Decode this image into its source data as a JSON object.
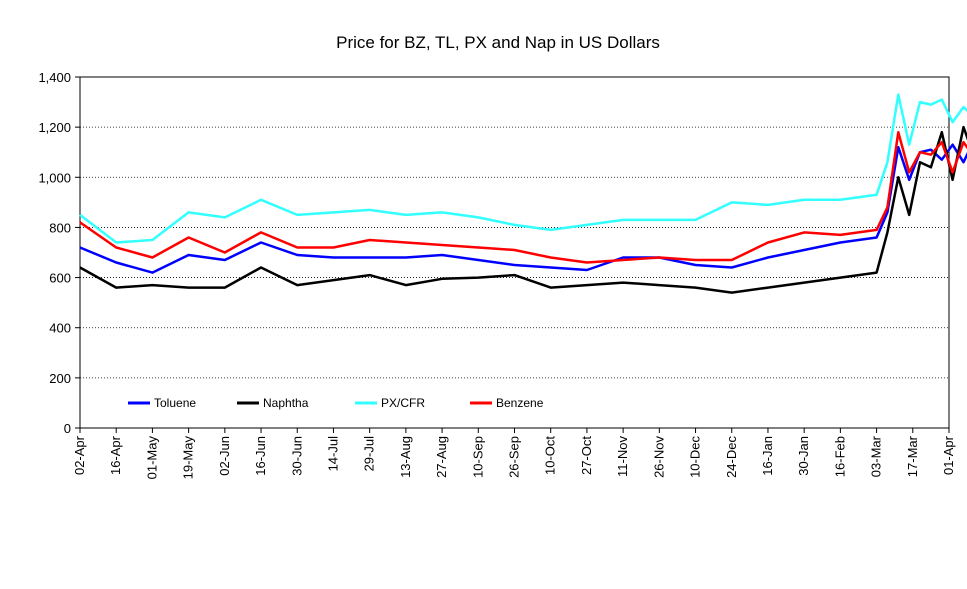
{
  "chart_data": {
    "type": "line",
    "title": "Price for BZ, TL, PX and Nap in US Dollars",
    "xlabel": "",
    "ylabel": "",
    "ylim": [
      0,
      1400
    ],
    "yticks": [
      0,
      200,
      400,
      600,
      800,
      1000,
      1200,
      1400
    ],
    "ytick_labels": [
      "0",
      "200",
      "400",
      "600",
      "800",
      "1,000",
      "1,200",
      "1,400"
    ],
    "grid": "horizontal dotted",
    "legend_position": "lower-left inside plot",
    "x_tick_labels": [
      "02-Apr",
      "16-Apr",
      "01-May",
      "19-May",
      "02-Jun",
      "16-Jun",
      "30-Jun",
      "14-Jul",
      "29-Jul",
      "13-Aug",
      "27-Aug",
      "10-Sep",
      "26-Sep",
      "10-Oct",
      "27-Oct",
      "11-Nov",
      "26-Nov",
      "10-Dec",
      "24-Dec",
      "16-Jan",
      "30-Jan",
      "16-Feb",
      "03-Mar",
      "17-Mar",
      "01-Apr"
    ],
    "x": [
      0,
      1,
      2,
      3,
      4,
      5,
      6,
      7,
      8,
      9,
      10,
      11,
      12,
      13,
      14,
      15,
      16,
      17,
      18,
      19,
      20,
      21,
      22,
      22.3,
      22.6,
      22.9,
      23.2,
      23.5,
      23.8,
      24.1,
      24.4,
      24.7,
      25.0
    ],
    "series": [
      {
        "name": "Toluene",
        "color": "#0000FF",
        "values": [
          720,
          660,
          620,
          690,
          670,
          740,
          690,
          680,
          680,
          680,
          690,
          670,
          650,
          640,
          630,
          680,
          680,
          650,
          640,
          680,
          710,
          740,
          760,
          860,
          1120,
          990,
          1100,
          1110,
          1070,
          1130,
          1060,
          1150,
          1120
        ]
      },
      {
        "name": "Naphtha",
        "color": "#000000",
        "values": [
          640,
          560,
          570,
          560,
          560,
          640,
          570,
          590,
          610,
          570,
          595,
          600,
          610,
          560,
          570,
          580,
          570,
          560,
          540,
          560,
          580,
          600,
          620,
          780,
          1000,
          850,
          1060,
          1040,
          1180,
          990,
          1200,
          1080,
          1150
        ]
      },
      {
        "name": "PX/CFR",
        "color": "#33FFFF",
        "values": [
          850,
          740,
          750,
          860,
          840,
          910,
          850,
          860,
          870,
          850,
          860,
          840,
          810,
          790,
          810,
          830,
          830,
          830,
          900,
          890,
          910,
          910,
          930,
          1060,
          1330,
          1130,
          1300,
          1290,
          1310,
          1220,
          1280,
          1240,
          1240
        ]
      },
      {
        "name": "Benzene",
        "color": "#FF0000",
        "values": [
          820,
          720,
          680,
          760,
          700,
          780,
          720,
          720,
          750,
          740,
          730,
          720,
          710,
          680,
          660,
          670,
          680,
          670,
          670,
          740,
          780,
          770,
          790,
          880,
          1180,
          1020,
          1100,
          1090,
          1140,
          1020,
          1140,
          1080,
          1140
        ]
      }
    ]
  }
}
